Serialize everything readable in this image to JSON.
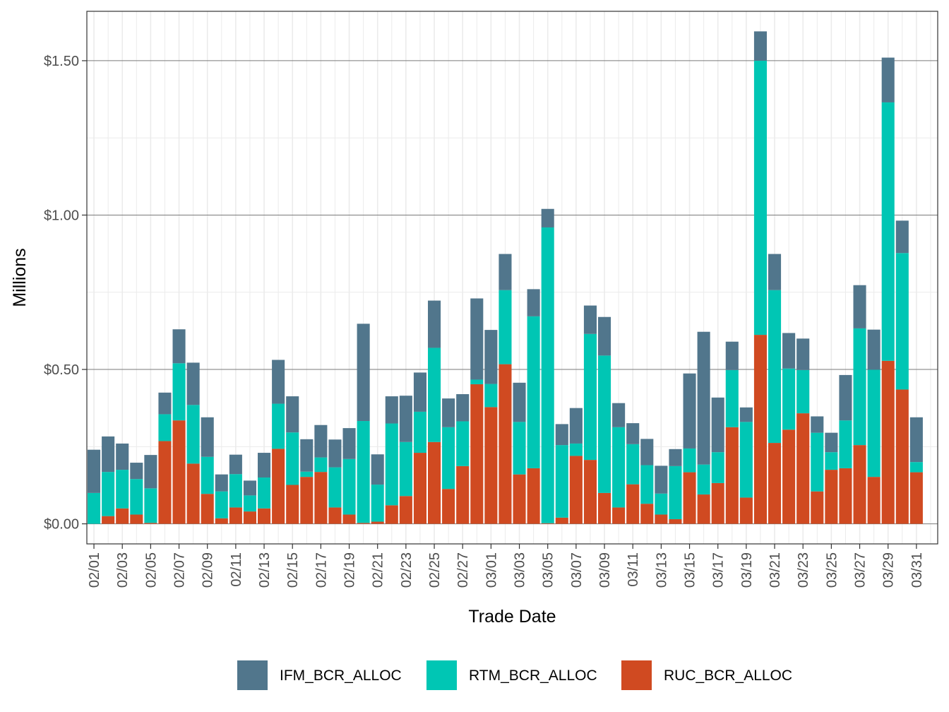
{
  "chart_data": {
    "type": "bar",
    "stacked": true,
    "xlabel": "Trade Date",
    "ylabel": "Millions",
    "ylim": [
      -0.065,
      1.66
    ],
    "y_ticks": [
      0,
      0.5,
      1.0,
      1.5
    ],
    "y_tick_labels": [
      "$0.00",
      "$0.50",
      "$1.00",
      "$1.50"
    ],
    "x_tick_labels": [
      "02/01",
      "02/03",
      "02/05",
      "02/07",
      "02/09",
      "02/11",
      "02/13",
      "02/15",
      "02/17",
      "02/19",
      "02/21",
      "02/23",
      "02/25",
      "02/27",
      "03/01",
      "03/03",
      "03/05",
      "03/07",
      "03/09",
      "03/11",
      "03/13",
      "03/15",
      "03/17",
      "03/19",
      "03/21",
      "03/23",
      "03/25",
      "03/27",
      "03/29",
      "03/31"
    ],
    "legend_position": "bottom",
    "grid": true,
    "categories": [
      "02/01",
      "02/02",
      "02/03",
      "02/04",
      "02/05",
      "02/06",
      "02/07",
      "02/08",
      "02/09",
      "02/10",
      "02/11",
      "02/12",
      "02/13",
      "02/14",
      "02/15",
      "02/16",
      "02/17",
      "02/18",
      "02/19",
      "02/20",
      "02/21",
      "02/22",
      "02/23",
      "02/24",
      "02/25",
      "02/26",
      "02/27",
      "02/28",
      "02/29",
      "03/01",
      "03/02",
      "03/03",
      "03/04",
      "03/05",
      "03/06",
      "03/07",
      "03/08",
      "03/09",
      "03/10",
      "03/11",
      "03/12",
      "03/13",
      "03/14",
      "03/15",
      "03/16",
      "03/17",
      "03/18",
      "03/19",
      "03/20",
      "03/21",
      "03/22",
      "03/23",
      "03/24",
      "03/25",
      "03/26",
      "03/27",
      "03/28",
      "03/29",
      "03/30",
      "03/31"
    ],
    "series": [
      {
        "name": "RUC_BCR_ALLOC",
        "color": "#d04a21",
        "values": [
          0.0,
          0.025,
          0.05,
          0.03,
          0.003,
          0.268,
          0.335,
          0.195,
          0.097,
          0.018,
          0.053,
          0.04,
          0.05,
          0.243,
          0.126,
          0.152,
          0.168,
          0.053,
          0.03,
          0.003,
          0.007,
          0.06,
          0.09,
          0.23,
          0.265,
          0.113,
          0.187,
          0.452,
          0.378,
          0.517,
          0.16,
          0.18,
          0.002,
          0.02,
          0.22,
          0.207,
          0.1,
          0.053,
          0.128,
          0.065,
          0.03,
          0.015,
          0.167,
          0.095,
          0.132,
          0.313,
          0.085,
          0.612,
          0.262,
          0.305,
          0.358,
          0.105,
          0.175,
          0.18,
          0.255,
          0.152,
          0.528,
          0.435,
          0.167,
          0.0
        ]
      },
      {
        "name": "RTM_BCR_ALLOC",
        "color": "#00c6b4",
        "values": [
          0.1,
          0.143,
          0.125,
          0.115,
          0.112,
          0.087,
          0.185,
          0.19,
          0.12,
          0.087,
          0.108,
          0.052,
          0.1,
          0.146,
          0.17,
          0.017,
          0.047,
          0.13,
          0.18,
          0.33,
          0.12,
          0.265,
          0.175,
          0.133,
          0.305,
          0.2,
          0.145,
          0.015,
          0.075,
          0.24,
          0.17,
          0.492,
          0.958,
          0.235,
          0.04,
          0.408,
          0.445,
          0.26,
          0.13,
          0.125,
          0.068,
          0.172,
          0.077,
          0.097,
          0.1,
          0.185,
          0.245,
          0.888,
          0.495,
          0.198,
          0.14,
          0.19,
          0.057,
          0.155,
          0.378,
          0.347,
          0.837,
          0.442,
          0.033,
          0.0
        ]
      },
      {
        "name": "IFM_BCR_ALLOC",
        "color": "#51768c",
        "values": [
          0.14,
          0.115,
          0.085,
          0.053,
          0.108,
          0.07,
          0.11,
          0.137,
          0.128,
          0.055,
          0.063,
          0.048,
          0.08,
          0.142,
          0.117,
          0.105,
          0.105,
          0.09,
          0.1,
          0.315,
          0.098,
          0.088,
          0.15,
          0.127,
          0.153,
          0.093,
          0.088,
          0.263,
          0.175,
          0.117,
          0.127,
          0.088,
          0.06,
          0.068,
          0.115,
          0.092,
          0.125,
          0.078,
          0.068,
          0.085,
          0.09,
          0.055,
          0.243,
          0.43,
          0.177,
          0.092,
          0.047,
          0.095,
          0.117,
          0.115,
          0.102,
          0.053,
          0.063,
          0.147,
          0.14,
          0.13,
          0.145,
          0.105,
          0.145,
          0.0
        ]
      }
    ],
    "legend_order": [
      "IFM_BCR_ALLOC",
      "RTM_BCR_ALLOC",
      "RUC_BCR_ALLOC"
    ]
  }
}
